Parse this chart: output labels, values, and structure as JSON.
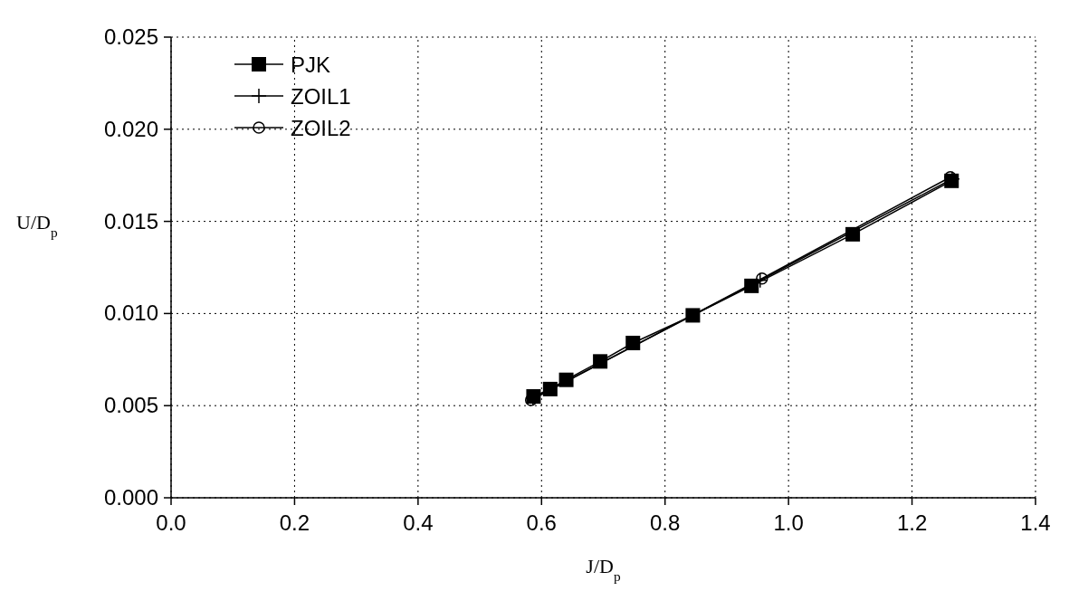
{
  "chart_data": {
    "type": "line",
    "xlabel": "J/D$_{p}$",
    "ylabel": "U/D$_{p}$",
    "xlim": [
      0,
      1.4
    ],
    "xticks": [
      {
        "value": 0,
        "label": "0.0"
      },
      {
        "value": 0.2,
        "label": "0.2"
      },
      {
        "value": 0.4,
        "label": "0.4"
      },
      {
        "value": 0.6,
        "label": "0.6"
      },
      {
        "value": 0.8,
        "label": "0.8"
      },
      {
        "value": 1,
        "label": "1.0"
      },
      {
        "value": 1.2,
        "label": "1.2"
      },
      {
        "value": 1.4,
        "label": "1.4"
      }
    ],
    "ylim": [
      0,
      0.025
    ],
    "yticks": [
      {
        "value": 0,
        "label": "0.000"
      },
      {
        "value": 0.005,
        "label": "0.005"
      },
      {
        "value": 0.01,
        "label": "0.010"
      },
      {
        "value": 0.015,
        "label": "0.015"
      },
      {
        "value": 0.02,
        "label": "0.020"
      },
      {
        "value": 0.025,
        "label": "0.025"
      }
    ],
    "grid": true,
    "legend": "top left",
    "series": [
      {
        "name": "PJK",
        "color": "#000000",
        "marker": "square",
        "x": [
          0.587,
          0.614,
          0.64,
          0.695,
          0.748,
          0.845,
          0.94,
          1.104,
          1.264
        ],
        "values": [
          0.0055,
          0.0059,
          0.0064,
          0.0074,
          0.0084,
          0.0099,
          0.0115,
          0.0143,
          0.0172
        ]
      },
      {
        "name": "ZOIL1",
        "color": "#000000",
        "marker": "cross",
        "x": [
          0.586,
          0.954,
          1.265
        ],
        "values": [
          0.0054,
          0.0118,
          0.0173
        ]
      },
      {
        "name": "ZOIL2",
        "color": "#000000",
        "marker": "circle",
        "x": [
          0.583,
          0.957,
          1.262
        ],
        "values": [
          0.0053,
          0.0119,
          0.0174
        ]
      }
    ]
  }
}
